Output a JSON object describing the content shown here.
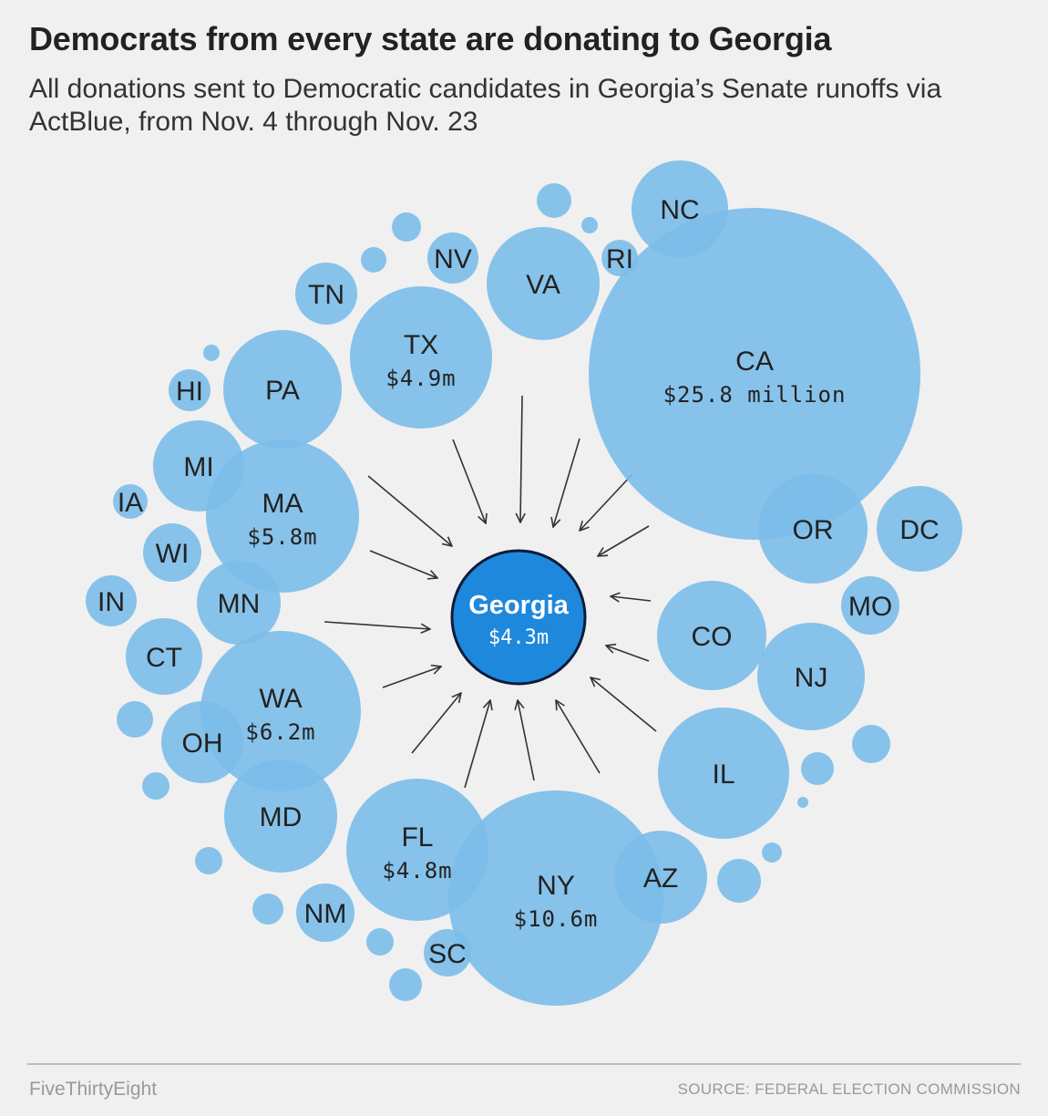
{
  "title": "Democrats from every state are donating to Georgia",
  "subtitle": "All donations sent to Democratic candidates in Georgia’s Senate runoffs via ActBlue, from Nov. 4 through Nov. 23",
  "footer": {
    "brand": "FiveThirtyEight",
    "source": "SOURCE: FEDERAL ELECTION COMMISSION"
  },
  "colors": {
    "bubble": "#7bbde9",
    "center": "#1e88dc",
    "center_border": "#0d1b3a",
    "arrow": "#333333",
    "label": "#222222"
  },
  "chart_data": {
    "type": "bubble",
    "center": {
      "label": "Georgia",
      "value_label": "$4.3m"
    },
    "states": [
      {
        "label": "CA",
        "value_label": "$25.8 million"
      },
      {
        "label": "NY",
        "value_label": "$10.6m"
      },
      {
        "label": "WA",
        "value_label": "$6.2m"
      },
      {
        "label": "MA",
        "value_label": "$5.8m"
      },
      {
        "label": "TX",
        "value_label": "$4.9m"
      },
      {
        "label": "FL",
        "value_label": "$4.8m"
      },
      {
        "label": "IL"
      },
      {
        "label": "PA"
      },
      {
        "label": "VA"
      },
      {
        "label": "MD"
      },
      {
        "label": "CO"
      },
      {
        "label": "NJ"
      },
      {
        "label": "NC"
      },
      {
        "label": "OR"
      },
      {
        "label": "MN"
      },
      {
        "label": "MI"
      },
      {
        "label": "DC"
      },
      {
        "label": "AZ"
      },
      {
        "label": "OH"
      },
      {
        "label": "CT"
      },
      {
        "label": "MO"
      },
      {
        "label": "WI"
      },
      {
        "label": "TN"
      },
      {
        "label": "NV"
      },
      {
        "label": "IN"
      },
      {
        "label": "NM"
      },
      {
        "label": "SC"
      },
      {
        "label": "HI"
      },
      {
        "label": "IA"
      },
      {
        "label": "RI"
      },
      {
        "label": ""
      },
      {
        "label": ""
      },
      {
        "label": ""
      },
      {
        "label": ""
      },
      {
        "label": ""
      },
      {
        "label": ""
      },
      {
        "label": ""
      },
      {
        "label": ""
      },
      {
        "label": ""
      },
      {
        "label": ""
      },
      {
        "label": ""
      },
      {
        "label": ""
      },
      {
        "label": ""
      },
      {
        "label": ""
      },
      {
        "label": ""
      }
    ]
  }
}
